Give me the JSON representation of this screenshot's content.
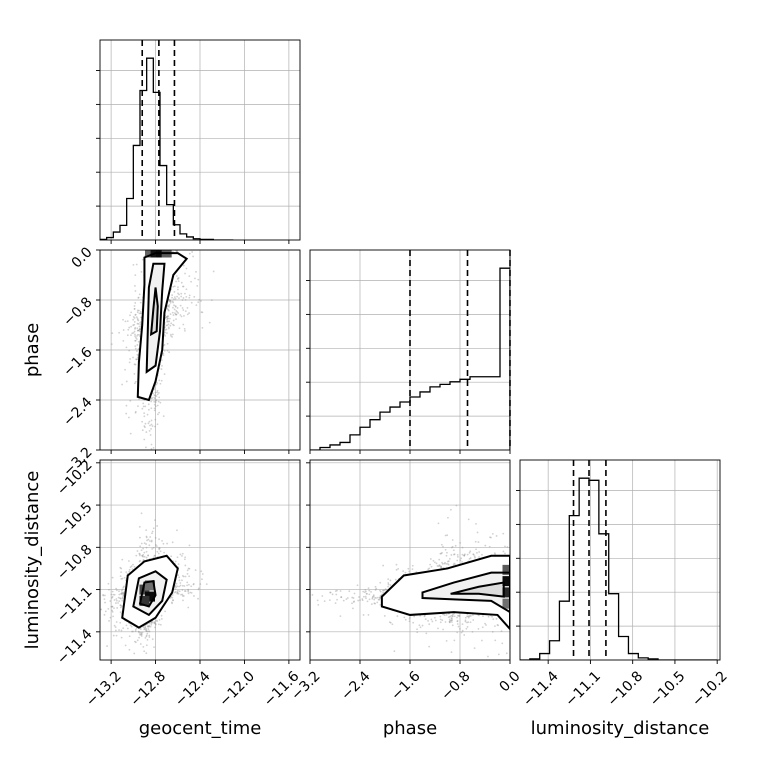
{
  "chart_data": {
    "type": "corner",
    "grid": true,
    "variables": [
      {
        "id": "geocent_time",
        "label": "geocent_time",
        "range": [
          -13.3,
          -11.5
        ],
        "ticks": [
          -13.2,
          -12.8,
          -12.4,
          -12.0,
          -11.6
        ],
        "tick_labels": [
          "−13.2",
          "−12.8",
          "−12.4",
          "−12.0",
          "−11.6"
        ],
        "quantiles": [
          -12.92,
          -12.77,
          -12.63
        ],
        "histogram": {
          "bin_edges": [
            -13.3,
            -13.24,
            -13.18,
            -13.12,
            -13.06,
            -13.0,
            -12.94,
            -12.88,
            -12.82,
            -12.76,
            -12.7,
            -12.64,
            -12.58,
            -12.52,
            -12.46,
            -12.4,
            -12.34,
            -12.28,
            -12.22,
            -12.16,
            -12.1
          ],
          "counts": [
            1,
            4,
            13,
            24,
            68,
            155,
            245,
            298,
            242,
            122,
            58,
            25,
            10,
            5,
            2,
            1,
            1,
            0,
            0,
            0
          ]
        }
      },
      {
        "id": "phase",
        "label": "phase",
        "range": [
          -3.2,
          0.0
        ],
        "ticks": [
          -3.2,
          -2.4,
          -1.6,
          -0.8,
          0.0
        ],
        "tick_labels": [
          "−3.2",
          "−2.4",
          "−1.6",
          "−0.8",
          "0.0"
        ],
        "quantiles": [
          -1.6,
          -0.68,
          0.0
        ],
        "histogram": {
          "bin_edges": [
            -3.2,
            -3.04,
            -2.88,
            -2.72,
            -2.56,
            -2.4,
            -2.24,
            -2.08,
            -1.92,
            -1.76,
            -1.6,
            -1.44,
            -1.28,
            -1.12,
            -0.96,
            -0.8,
            -0.64,
            -0.48,
            -0.32,
            -0.16,
            0.0
          ],
          "counts": [
            0,
            0.5,
            1,
            1.5,
            3,
            4.5,
            6,
            7.5,
            8.5,
            9.5,
            10.5,
            11.5,
            12.5,
            13,
            13.5,
            14,
            14.5,
            14.5,
            14.5,
            36
          ]
        }
      },
      {
        "id": "luminosity_distance",
        "label": "luminosity_distance",
        "range": [
          -11.6,
          -10.18
        ],
        "ticks": [
          -11.4,
          -11.1,
          -10.8,
          -10.5,
          -10.2
        ],
        "tick_labels": [
          "−11.4",
          "−11.1",
          "−10.8",
          "−10.5",
          "−10.2"
        ],
        "quantiles": [
          -11.22,
          -11.11,
          -10.99
        ],
        "histogram": {
          "bin_edges": [
            -11.6,
            -11.53,
            -11.46,
            -11.39,
            -11.32,
            -11.25,
            -11.18,
            -11.11,
            -11.04,
            -10.97,
            -10.9,
            -10.83,
            -10.76,
            -10.69,
            -10.62,
            -10.55,
            -10.48,
            -10.41,
            -10.34,
            -10.27,
            -10.2
          ],
          "counts": [
            0,
            1,
            6,
            18,
            55,
            135,
            170,
            168,
            118,
            62,
            22,
            6,
            2,
            1,
            0,
            0,
            0,
            0,
            0,
            0
          ]
        }
      }
    ],
    "pairs": [
      {
        "x": "geocent_time",
        "y": "phase",
        "contours": [
          [
            [
              -12.96,
              -2.35
            ],
            [
              -12.95,
              -1.8
            ],
            [
              -12.92,
              -1.2
            ],
            [
              -12.9,
              -0.55
            ],
            [
              -12.9,
              -0.12
            ],
            [
              -12.8,
              -0.05
            ],
            [
              -12.6,
              -0.05
            ],
            [
              -12.52,
              -0.14
            ],
            [
              -12.64,
              -0.4
            ],
            [
              -12.72,
              -1.0
            ],
            [
              -12.74,
              -1.6
            ],
            [
              -12.8,
              -2.1
            ],
            [
              -12.86,
              -2.4
            ],
            [
              -12.96,
              -2.35
            ]
          ],
          [
            [
              -12.88,
              -1.95
            ],
            [
              -12.87,
              -1.3
            ],
            [
              -12.86,
              -0.6
            ],
            [
              -12.82,
              -0.22
            ],
            [
              -12.72,
              -0.22
            ],
            [
              -12.74,
              -0.65
            ],
            [
              -12.76,
              -1.3
            ],
            [
              -12.8,
              -1.85
            ],
            [
              -12.88,
              -1.95
            ]
          ],
          [
            [
              -12.84,
              -1.35
            ],
            [
              -12.82,
              -0.95
            ],
            [
              -12.8,
              -0.6
            ],
            [
              -12.78,
              -0.9
            ],
            [
              -12.79,
              -1.3
            ],
            [
              -12.84,
              -1.35
            ]
          ]
        ],
        "hot_cells": [
          {
            "x": -12.85,
            "y": -0.04,
            "value": 0.55
          },
          {
            "x": -12.8,
            "y": -0.04,
            "value": 0.95
          },
          {
            "x": -12.75,
            "y": -0.04,
            "value": 1.0
          },
          {
            "x": -12.7,
            "y": -0.04,
            "value": 0.6
          }
        ]
      },
      {
        "x": "geocent_time",
        "y": "luminosity_distance",
        "contours": [
          [
            [
              -13.1,
              -11.3
            ],
            [
              -13.05,
              -11.0
            ],
            [
              -12.9,
              -10.9
            ],
            [
              -12.7,
              -10.86
            ],
            [
              -12.6,
              -10.95
            ],
            [
              -12.65,
              -11.12
            ],
            [
              -12.8,
              -11.3
            ],
            [
              -12.95,
              -11.37
            ],
            [
              -13.1,
              -11.3
            ]
          ],
          [
            [
              -13.0,
              -11.22
            ],
            [
              -12.95,
              -11.02
            ],
            [
              -12.8,
              -10.97
            ],
            [
              -12.7,
              -11.03
            ],
            [
              -12.74,
              -11.18
            ],
            [
              -12.86,
              -11.28
            ],
            [
              -13.0,
              -11.22
            ]
          ],
          [
            [
              -12.94,
              -11.2
            ],
            [
              -12.9,
              -11.05
            ],
            [
              -12.82,
              -11.04
            ],
            [
              -12.8,
              -11.14
            ],
            [
              -12.86,
              -11.22
            ],
            [
              -12.94,
              -11.2
            ]
          ]
        ],
        "hot_cells": [
          {
            "x": -12.9,
            "y": -11.1,
            "value": 0.7
          },
          {
            "x": -12.85,
            "y": -11.15,
            "value": 1.0
          },
          {
            "x": -12.9,
            "y": -11.18,
            "value": 0.8
          },
          {
            "x": -12.85,
            "y": -11.07,
            "value": 0.5
          }
        ]
      },
      {
        "x": "phase",
        "y": "luminosity_distance",
        "contours": [
          [
            [
              -2.05,
              -11.15
            ],
            [
              -1.7,
              -11.0
            ],
            [
              -1.0,
              -10.95
            ],
            [
              -0.3,
              -10.86
            ],
            [
              0.0,
              -10.86
            ],
            [
              0.0,
              -11.38
            ],
            [
              -0.2,
              -11.28
            ],
            [
              -0.9,
              -11.26
            ],
            [
              -1.6,
              -11.28
            ],
            [
              -2.05,
              -11.22
            ],
            [
              -2.05,
              -11.15
            ]
          ],
          [
            [
              -1.4,
              -11.12
            ],
            [
              -0.9,
              -11.05
            ],
            [
              -0.3,
              -10.98
            ],
            [
              0.0,
              -10.98
            ],
            [
              0.0,
              -11.26
            ],
            [
              -0.3,
              -11.18
            ],
            [
              -0.9,
              -11.17
            ],
            [
              -1.4,
              -11.16
            ],
            [
              -1.4,
              -11.12
            ]
          ],
          [
            [
              -0.95,
              -11.13
            ],
            [
              -0.5,
              -11.08
            ],
            [
              -0.1,
              -11.05
            ],
            [
              -0.1,
              -11.15
            ],
            [
              -0.5,
              -11.13
            ],
            [
              -0.95,
              -11.13
            ]
          ]
        ],
        "hot_cells": [
          {
            "x": -0.04,
            "y": -10.96,
            "value": 0.6
          },
          {
            "x": -0.04,
            "y": -11.04,
            "value": 1.0
          },
          {
            "x": -0.04,
            "y": -11.12,
            "value": 0.85
          },
          {
            "x": -0.04,
            "y": -11.2,
            "value": 0.5
          }
        ]
      }
    ]
  }
}
